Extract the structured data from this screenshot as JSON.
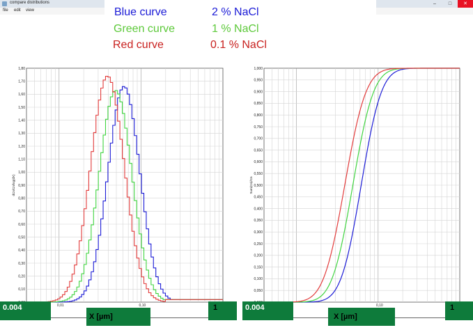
{
  "window": {
    "title": "compare distributions",
    "menu": [
      "file",
      "edit",
      "view"
    ],
    "controls": {
      "minimize": "–",
      "maximize": "□",
      "close": "✕"
    }
  },
  "legend": [
    {
      "label": "Blue curve",
      "value": "2 % NaCl",
      "color": "#1a1ad6"
    },
    {
      "label": "Green curve",
      "value": "1 % NaCl",
      "color": "#5dc93a"
    },
    {
      "label": "Red curve",
      "value": "0.1 % NaCl",
      "color": "#c8201e"
    }
  ],
  "overlays": {
    "left_min": "0.004",
    "left_max": "1",
    "left_axis": "X [µm]",
    "right_min": "0.004",
    "right_max": "1",
    "right_axis": "X [µm]"
  },
  "chart_data": [
    {
      "type": "line",
      "title": "",
      "xlabel": "X [µm]",
      "ylabel": "dCn/Cn/log(dX)",
      "xscale": "log",
      "xlim": [
        0.004,
        1
      ],
      "ylim": [
        0,
        1.8
      ],
      "yticks": [
        "0,00",
        "0,10",
        "0,20",
        "0,30",
        "0,40",
        "0,50",
        "0,60",
        "0,70",
        "0,80",
        "0,90",
        "1,00",
        "1,10",
        "1,20",
        "1,30",
        "1,40",
        "1,50",
        "1,60",
        "1,70",
        "1,80"
      ],
      "yvalues": [
        0,
        0.1,
        0.2,
        0.3,
        0.4,
        0.5,
        0.6,
        0.7,
        0.8,
        0.9,
        1.0,
        1.1,
        1.2,
        1.3,
        1.4,
        1.5,
        1.6,
        1.7,
        1.8
      ],
      "xtick_labels": [
        {
          "x": 0.01,
          "label": "0,01"
        },
        {
          "x": 0.1,
          "label": "0,10"
        }
      ],
      "series": [
        {
          "name": "Blue curve",
          "color": "#1a1ad6",
          "peak_x": 0.062,
          "peak_y": 1.66,
          "width": 0.195
        },
        {
          "name": "Green curve",
          "color": "#3fd43f",
          "peak_x": 0.049,
          "peak_y": 1.63,
          "width": 0.2
        },
        {
          "name": "Red curve",
          "color": "#e23a3a",
          "peak_x": 0.039,
          "peak_y": 1.74,
          "width": 0.205
        }
      ]
    },
    {
      "type": "line",
      "title": "",
      "xlabel": "X [µm]",
      "ylabel": "Sum(Cn)/Cn",
      "xscale": "log",
      "xlim": [
        0.004,
        1
      ],
      "ylim": [
        0,
        1
      ],
      "yticks": [
        "0,000",
        "0,050",
        "0,100",
        "0,150",
        "0,200",
        "0,250",
        "0,300",
        "0,350",
        "0,400",
        "0,450",
        "0,500",
        "0,550",
        "0,600",
        "0,650",
        "0,700",
        "0,750",
        "0,800",
        "0,850",
        "0,900",
        "0,950",
        "1,000"
      ],
      "yvalues": [
        0,
        0.05,
        0.1,
        0.15,
        0.2,
        0.25,
        0.3,
        0.35,
        0.4,
        0.45,
        0.5,
        0.55,
        0.6,
        0.65,
        0.7,
        0.75,
        0.8,
        0.85,
        0.9,
        0.95,
        1.0
      ],
      "xtick_labels": [
        {
          "x": 0.1,
          "label": "0,10"
        }
      ],
      "series": [
        {
          "name": "Blue curve",
          "color": "#1a1ad6",
          "median_x": 0.062,
          "width": 0.195
        },
        {
          "name": "Green curve",
          "color": "#3fd43f",
          "median_x": 0.049,
          "width": 0.2
        },
        {
          "name": "Red curve",
          "color": "#e23a3a",
          "median_x": 0.039,
          "width": 0.205
        }
      ]
    }
  ]
}
